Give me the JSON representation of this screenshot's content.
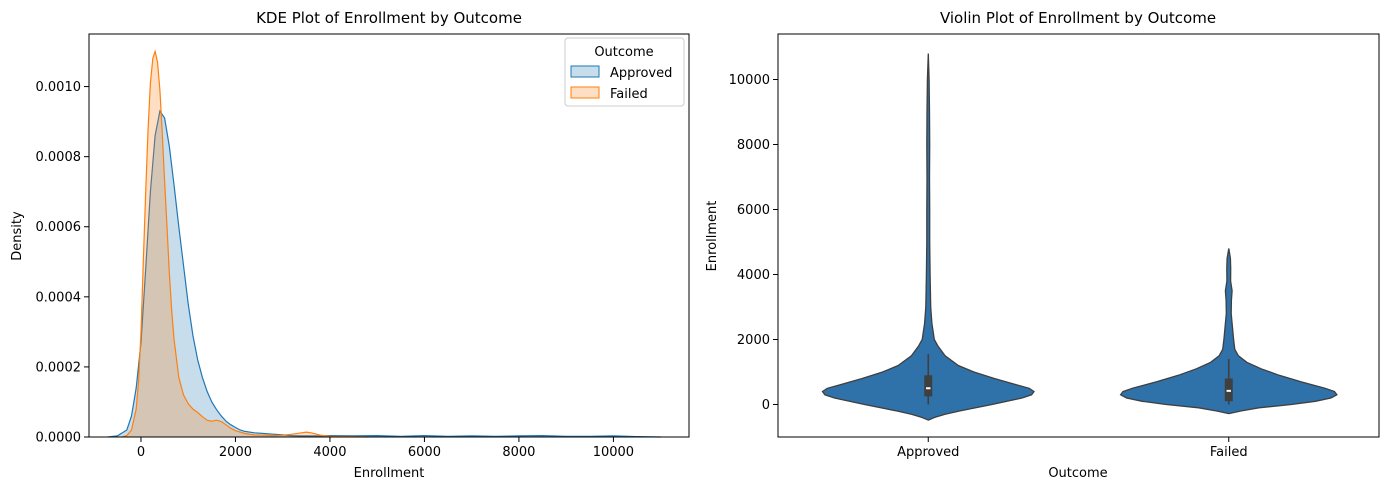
{
  "chart_data": [
    {
      "type": "area",
      "title": "KDE Plot of Enrollment by Outcome",
      "xlabel": "Enrollment",
      "ylabel": "Density",
      "xlim": [
        -1100,
        11600
      ],
      "ylim": [
        0,
        0.00115
      ],
      "xticks": [
        0,
        2000,
        4000,
        6000,
        8000,
        10000
      ],
      "xtick_labels": [
        "0",
        "2000",
        "4000",
        "6000",
        "8000",
        "10000"
      ],
      "yticks": [
        0,
        0.0002,
        0.0004,
        0.0006,
        0.0008,
        0.001
      ],
      "ytick_labels": [
        "0.0000",
        "0.0002",
        "0.0004",
        "0.0006",
        "0.0008",
        "0.0010"
      ],
      "grid": false,
      "legend": {
        "title": "Outcome",
        "placement": "top-right"
      },
      "series": [
        {
          "name": "Approved",
          "color": "#1f77b4",
          "x": [
            -700,
            -500,
            -300,
            -200,
            -100,
            0,
            100,
            200,
            300,
            400,
            500,
            600,
            700,
            800,
            900,
            1000,
            1100,
            1200,
            1300,
            1400,
            1500,
            1600,
            1700,
            1800,
            1900,
            2000,
            2100,
            2200,
            2400,
            2600,
            2800,
            3000,
            3200,
            3400,
            3600,
            3800,
            4000,
            4500,
            5000,
            5500,
            6000,
            6500,
            7000,
            7500,
            8000,
            8500,
            9000,
            9500,
            10000,
            10500,
            11000
          ],
          "y": [
            0,
            3e-06,
            2e-05,
            6e-05,
            0.00014,
            0.00027,
            0.00048,
            0.0007,
            0.00086,
            0.00093,
            0.00091,
            0.00083,
            0.00072,
            0.0006,
            0.00049,
            0.00038,
            0.00029,
            0.00022,
            0.00017,
            0.00013,
            0.0001,
            7.8e-05,
            6e-05,
            4.5e-05,
            3.5e-05,
            2.7e-05,
            2e-05,
            1.6e-05,
            1.2e-05,
            1e-05,
            8e-06,
            6e-06,
            4e-06,
            3e-06,
            3e-06,
            3e-06,
            4e-06,
            3e-06,
            4e-06,
            2e-06,
            4e-06,
            2e-06,
            3e-06,
            2e-06,
            3e-06,
            4e-06,
            2e-06,
            2e-06,
            3e-06,
            1e-06,
            0
          ]
        },
        {
          "name": "Failed",
          "color": "#ff7f0e",
          "x": [
            -400,
            -300,
            -200,
            -100,
            -50,
            0,
            50,
            100,
            150,
            200,
            250,
            300,
            350,
            400,
            450,
            500,
            550,
            600,
            650,
            700,
            800,
            900,
            1000,
            1100,
            1200,
            1300,
            1400,
            1500,
            1600,
            1700,
            1800,
            1900,
            2000,
            2200,
            2400,
            2600,
            2800,
            3000,
            3200,
            3400,
            3500,
            3600,
            3800,
            4000,
            4400,
            4800
          ],
          "y": [
            0,
            4e-06,
            2e-05,
            8e-05,
            0.00016,
            0.0003,
            0.0005,
            0.0007,
            0.00088,
            0.00101,
            0.00108,
            0.0011,
            0.00107,
            0.00099,
            0.00087,
            0.00073,
            0.0006,
            0.00047,
            0.00036,
            0.00028,
            0.00017,
            0.00012,
            9.5e-05,
            8e-05,
            7e-05,
            5.8e-05,
            4.8e-05,
            4.5e-05,
            4.8e-05,
            4.4e-05,
            3.5e-05,
            2.5e-05,
            1.8e-05,
            1e-05,
            6e-06,
            5e-06,
            4e-06,
            5e-06,
            8e-06,
            1.2e-05,
            1.4e-05,
            1.2e-05,
            5e-06,
            2e-06,
            1e-06,
            0
          ]
        }
      ]
    },
    {
      "type": "violin",
      "title": "Violin Plot of Enrollment by Outcome",
      "xlabel": "Outcome",
      "ylabel": "Enrollment",
      "categories": [
        "Approved",
        "Failed"
      ],
      "ylim": [
        -1000,
        11400
      ],
      "yticks": [
        0,
        2000,
        4000,
        6000,
        8000,
        10000
      ],
      "ytick_labels": [
        "0",
        "2000",
        "4000",
        "6000",
        "8000",
        "10000"
      ],
      "grid": false,
      "color": "#2f72aa",
      "violins": [
        {
          "category": "Approved",
          "median": 500,
          "q1": 250,
          "q3": 900,
          "whisker_low": 0,
          "whisker_high": 1550,
          "profile": [
            [
              -480,
              0
            ],
            [
              -400,
              0.05
            ],
            [
              -300,
              0.14
            ],
            [
              -200,
              0.26
            ],
            [
              0,
              0.53
            ],
            [
              200,
              0.78
            ],
            [
              300,
              0.86
            ],
            [
              400,
              0.88
            ],
            [
              500,
              0.84
            ],
            [
              600,
              0.74
            ],
            [
              800,
              0.55
            ],
            [
              1000,
              0.38
            ],
            [
              1200,
              0.25
            ],
            [
              1500,
              0.14
            ],
            [
              1800,
              0.08
            ],
            [
              2000,
              0.05
            ],
            [
              2500,
              0.03
            ],
            [
              3000,
              0.02
            ],
            [
              4000,
              0.015
            ],
            [
              5000,
              0.012
            ],
            [
              6000,
              0.012
            ],
            [
              7000,
              0.01
            ],
            [
              8000,
              0.012
            ],
            [
              9000,
              0.01
            ],
            [
              10000,
              0.007
            ],
            [
              10800,
              0
            ]
          ]
        },
        {
          "category": "Failed",
          "median": 420,
          "q1": 100,
          "q3": 800,
          "whisker_low": 0,
          "whisker_high": 1400,
          "profile": [
            [
              -280,
              0
            ],
            [
              -200,
              0.1
            ],
            [
              -100,
              0.25
            ],
            [
              0,
              0.52
            ],
            [
              100,
              0.72
            ],
            [
              200,
              0.85
            ],
            [
              300,
              0.9
            ],
            [
              400,
              0.88
            ],
            [
              500,
              0.8
            ],
            [
              700,
              0.6
            ],
            [
              900,
              0.42
            ],
            [
              1100,
              0.27
            ],
            [
              1300,
              0.15
            ],
            [
              1500,
              0.08
            ],
            [
              1700,
              0.05
            ],
            [
              2000,
              0.04
            ],
            [
              2400,
              0.03
            ],
            [
              2800,
              0.02
            ],
            [
              3200,
              0.022
            ],
            [
              3500,
              0.028
            ],
            [
              3800,
              0.015
            ],
            [
              4200,
              0.016
            ],
            [
              4500,
              0.014
            ],
            [
              4800,
              0
            ]
          ]
        }
      ]
    }
  ]
}
